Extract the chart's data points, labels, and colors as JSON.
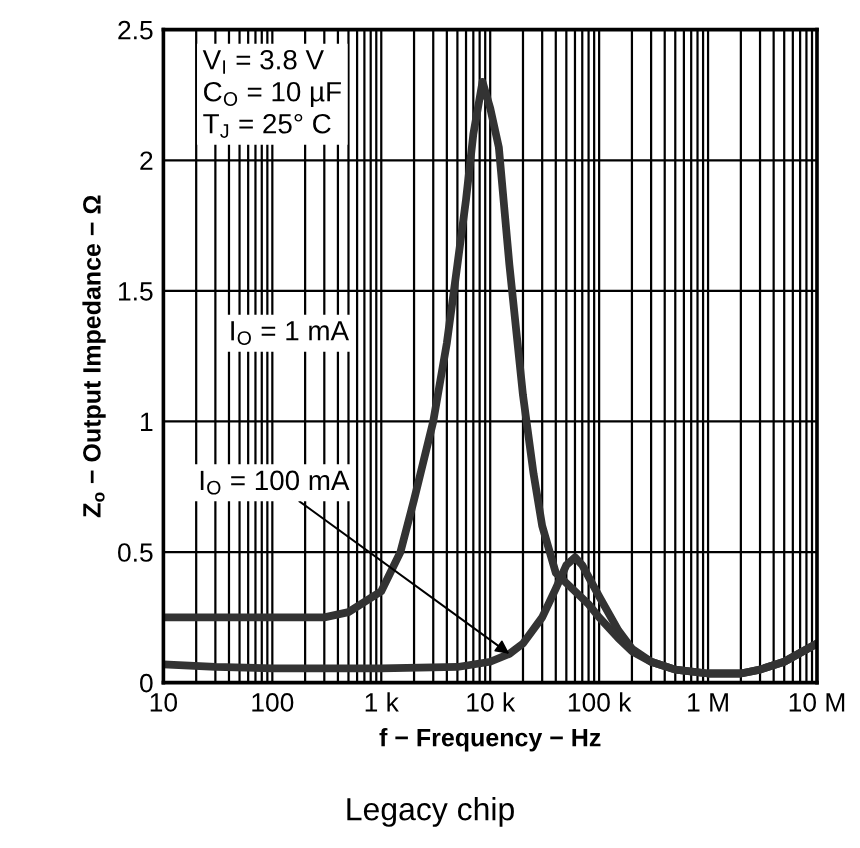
{
  "chart_data": {
    "type": "line",
    "xlabel": "f − Frequency − Hz",
    "ylabel": "Z$_{o}$ − Output Impedance − Ω",
    "log": "x",
    "xlim": [
      10,
      10000000
    ],
    "ylim": [
      0,
      2.5
    ],
    "xticks": [
      10,
      100,
      {
        "value": 1000,
        "label": "1 k"
      },
      {
        "value": 10000,
        "label": "10 k"
      },
      {
        "value": 100000,
        "label": "100 k"
      },
      {
        "value": 1000000,
        "label": "1 M"
      },
      {
        "value": 10000000,
        "label": "10 M"
      }
    ],
    "yticks": [
      0,
      0.5,
      1,
      1.5,
      2,
      2.5
    ],
    "grid": true,
    "legend": false,
    "line_style": "solid",
    "marker": "none",
    "series": [
      {
        "color": "#333333",
        "x": [
          10,
          100,
          300,
          500,
          1000,
          1500,
          2000,
          3000,
          4000,
          5000,
          6000,
          7000,
          8500,
          10000,
          12000,
          15000,
          20000,
          25000,
          30000,
          40000,
          60000,
          80000,
          100000,
          150000,
          200000,
          300000,
          500000,
          1000000,
          2000000,
          3000000,
          5000000,
          10000000
        ],
        "values": [
          0.25,
          0.25,
          0.25,
          0.27,
          0.35,
          0.5,
          0.7,
          1.0,
          1.3,
          1.6,
          1.85,
          2.1,
          2.3,
          2.2,
          2.05,
          1.6,
          1.1,
          0.8,
          0.6,
          0.42,
          0.35,
          0.3,
          0.25,
          0.17,
          0.12,
          0.08,
          0.05,
          0.035,
          0.035,
          0.05,
          0.08,
          0.15
        ]
      },
      {
        "color": "#333333",
        "x": [
          10,
          30,
          100,
          1000,
          5000,
          10000,
          15000,
          20000,
          30000,
          40000,
          50000,
          60000,
          70000,
          100000,
          150000,
          200000,
          300000,
          500000,
          1000000,
          2000000,
          3000000,
          5000000,
          10000000
        ],
        "values": [
          0.07,
          0.06,
          0.055,
          0.055,
          0.06,
          0.08,
          0.11,
          0.15,
          0.25,
          0.36,
          0.45,
          0.48,
          0.45,
          0.33,
          0.2,
          0.13,
          0.08,
          0.05,
          0.035,
          0.035,
          0.05,
          0.08,
          0.15
        ]
      }
    ],
    "annotations": [
      "V$_{I}$ = 3.8 V\nC$_{O}$ = 10 µF\nT$_{J}$ = 25° C",
      "I$_{O}$ = 1 mA",
      {
        "text": "I$_{O}$ = 100 mA",
        "x": 15000,
        "y": 0.11
      },
      "Legacy chip"
    ]
  }
}
